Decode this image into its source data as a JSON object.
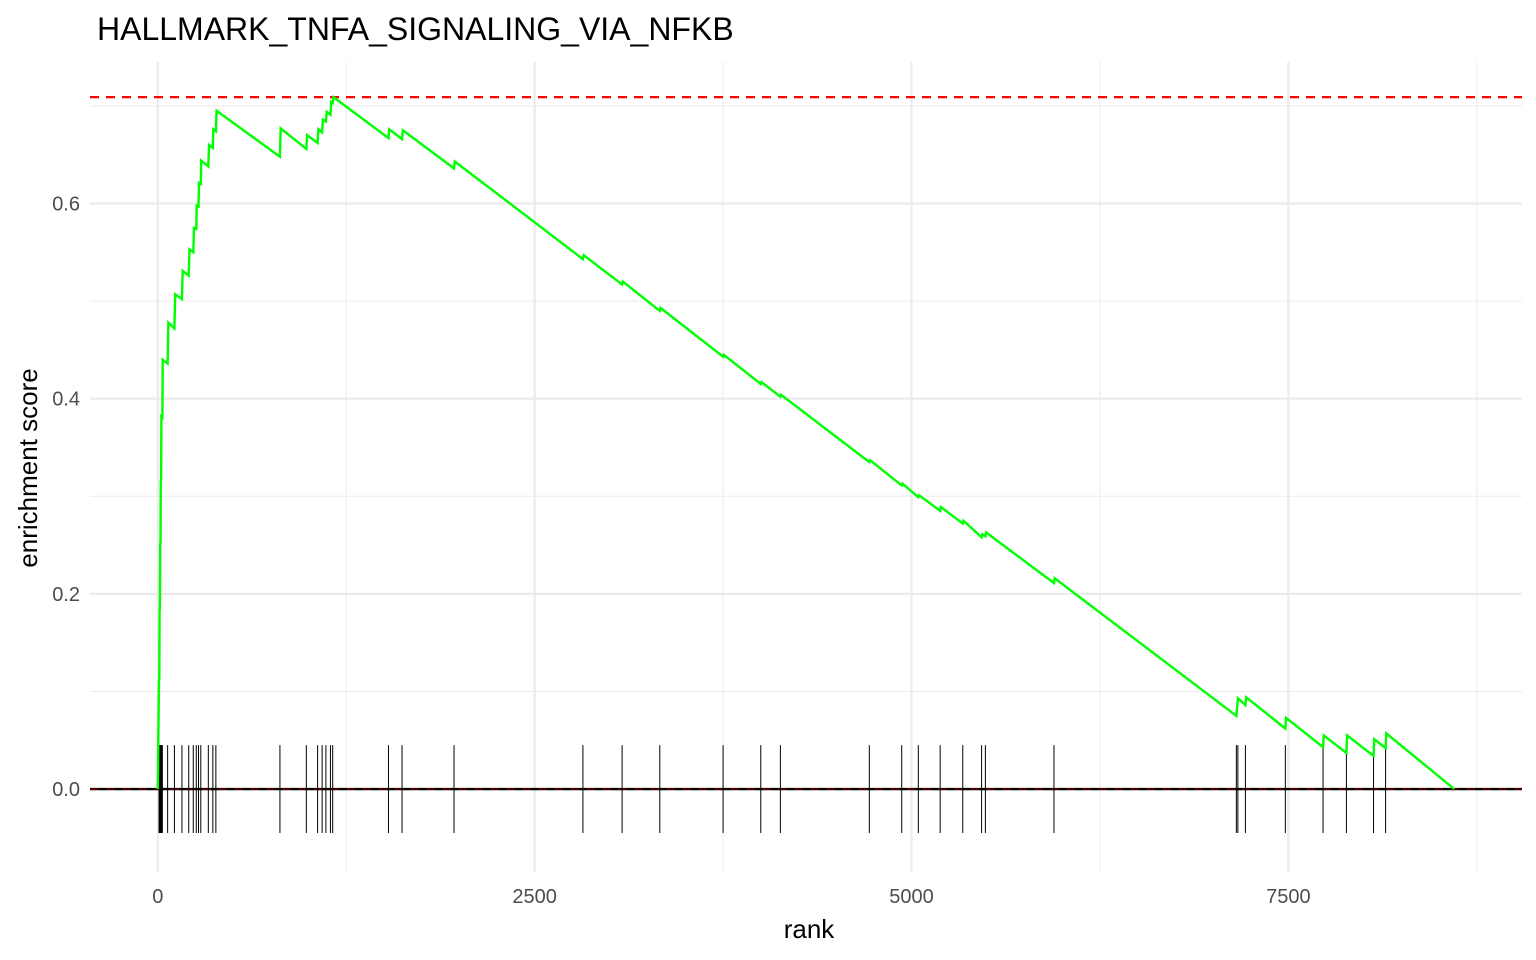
{
  "chart_data": {
    "type": "line",
    "title": "HALLMARK_TNFA_SIGNALING_VIA_NFKB",
    "xlabel": "rank",
    "ylabel": "enrichment score",
    "xlim": [
      -450,
      9050
    ],
    "ylim": [
      -0.085,
      0.745
    ],
    "x_ticks": [
      0,
      2500,
      5000,
      7500
    ],
    "x_tick_labels": [
      "0",
      "2500",
      "5000",
      "7500"
    ],
    "y_ticks": [
      0.0,
      0.2,
      0.4,
      0.6
    ],
    "y_tick_labels": [
      "0.0",
      "0.2",
      "0.4",
      "0.6"
    ],
    "grid": true,
    "max_es_line": 0.709,
    "zero_line": 0.0,
    "colors": {
      "curve": "#00ff00",
      "max_line": "#ff0000",
      "baseline": "#000000",
      "rug": "#000000",
      "grid": "#ebebeb"
    },
    "series": [
      {
        "name": "running enrichment score",
        "points": [
          [
            0,
            0.0
          ],
          [
            8,
            0.113
          ],
          [
            10,
            0.112
          ],
          [
            12,
            0.185
          ],
          [
            14,
            0.184
          ],
          [
            16,
            0.252
          ],
          [
            18,
            0.251
          ],
          [
            20,
            0.317
          ],
          [
            22,
            0.316
          ],
          [
            24,
            0.382
          ],
          [
            30,
            0.381
          ],
          [
            32,
            0.44
          ],
          [
            65,
            0.436
          ],
          [
            70,
            0.478
          ],
          [
            110,
            0.472
          ],
          [
            115,
            0.507
          ],
          [
            160,
            0.502
          ],
          [
            165,
            0.531
          ],
          [
            205,
            0.526
          ],
          [
            210,
            0.553
          ],
          [
            235,
            0.55
          ],
          [
            240,
            0.575
          ],
          [
            255,
            0.574
          ],
          [
            258,
            0.598
          ],
          [
            270,
            0.597
          ],
          [
            273,
            0.621
          ],
          [
            285,
            0.62
          ],
          [
            288,
            0.644
          ],
          [
            335,
            0.638
          ],
          [
            340,
            0.66
          ],
          [
            365,
            0.657
          ],
          [
            368,
            0.676
          ],
          [
            385,
            0.674
          ],
          [
            390,
            0.695
          ],
          [
            810,
            0.648
          ],
          [
            815,
            0.677
          ],
          [
            985,
            0.656
          ],
          [
            990,
            0.67
          ],
          [
            1060,
            0.662
          ],
          [
            1065,
            0.676
          ],
          [
            1090,
            0.673
          ],
          [
            1095,
            0.686
          ],
          [
            1115,
            0.684
          ],
          [
            1120,
            0.694
          ],
          [
            1145,
            0.691
          ],
          [
            1150,
            0.704
          ],
          [
            1160,
            0.703
          ],
          [
            1165,
            0.709
          ],
          [
            1530,
            0.667
          ],
          [
            1535,
            0.676
          ],
          [
            1620,
            0.666
          ],
          [
            1625,
            0.675
          ],
          [
            1965,
            0.636
          ],
          [
            1970,
            0.643
          ],
          [
            2820,
            0.543
          ],
          [
            2825,
            0.547
          ],
          [
            3080,
            0.517
          ],
          [
            3085,
            0.52
          ],
          [
            3330,
            0.49
          ],
          [
            3335,
            0.493
          ],
          [
            3750,
            0.443
          ],
          [
            3755,
            0.445
          ],
          [
            4000,
            0.415
          ],
          [
            4005,
            0.417
          ],
          [
            4130,
            0.402
          ],
          [
            4135,
            0.404
          ],
          [
            4720,
            0.335
          ],
          [
            4725,
            0.337
          ],
          [
            4935,
            0.311
          ],
          [
            4940,
            0.313
          ],
          [
            5045,
            0.299
          ],
          [
            5050,
            0.301
          ],
          [
            5190,
            0.285
          ],
          [
            5195,
            0.289
          ],
          [
            5340,
            0.272
          ],
          [
            5345,
            0.275
          ],
          [
            5465,
            0.258
          ],
          [
            5470,
            0.261
          ],
          [
            5490,
            0.259
          ],
          [
            5495,
            0.263
          ],
          [
            5945,
            0.211
          ],
          [
            5950,
            0.216
          ],
          [
            7155,
            0.075
          ],
          [
            7165,
            0.093
          ],
          [
            7215,
            0.086
          ],
          [
            7220,
            0.094
          ],
          [
            7480,
            0.062
          ],
          [
            7485,
            0.073
          ],
          [
            7730,
            0.043
          ],
          [
            7735,
            0.055
          ],
          [
            7885,
            0.037
          ],
          [
            7890,
            0.055
          ],
          [
            8065,
            0.034
          ],
          [
            8070,
            0.051
          ],
          [
            8145,
            0.042
          ],
          [
            8150,
            0.057
          ],
          [
            8600,
            0.0
          ]
        ]
      }
    ],
    "rug_positions": [
      8,
      10,
      12,
      14,
      16,
      18,
      20,
      22,
      24,
      30,
      65,
      110,
      160,
      205,
      235,
      255,
      270,
      285,
      335,
      365,
      385,
      810,
      985,
      1060,
      1090,
      1115,
      1145,
      1160,
      1530,
      1620,
      1965,
      2820,
      3080,
      3330,
      3750,
      4000,
      4130,
      4720,
      4935,
      5045,
      5190,
      5340,
      5465,
      5490,
      5945,
      7155,
      7165,
      7215,
      7480,
      7730,
      7885,
      8065,
      8145
    ]
  }
}
